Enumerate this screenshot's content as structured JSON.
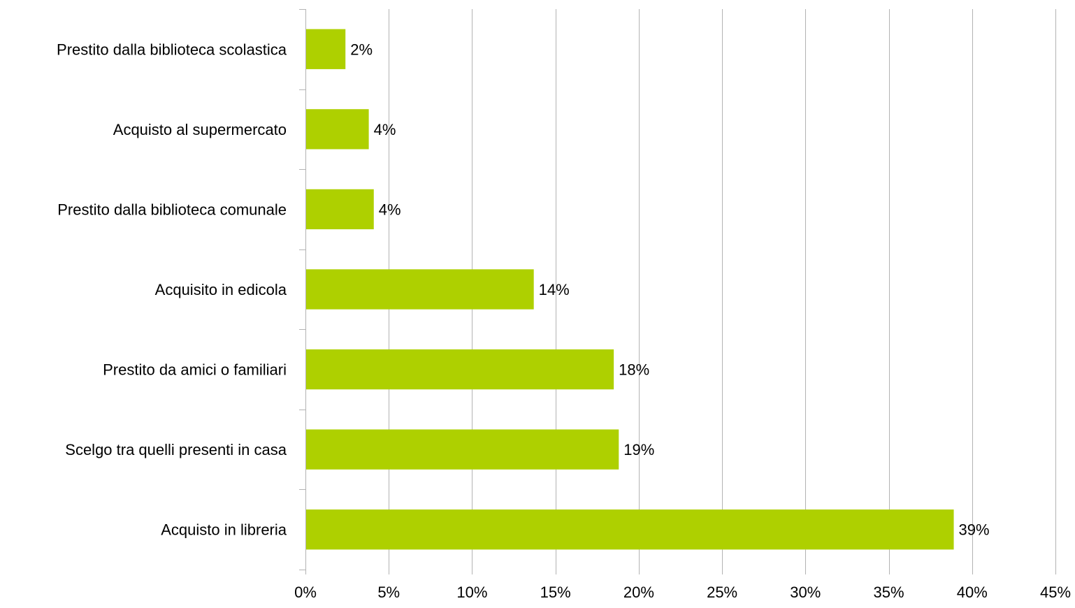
{
  "chart_data": {
    "type": "bar",
    "orientation": "horizontal",
    "title": "",
    "xlabel": "",
    "ylabel": "",
    "categories": [
      "Prestito dalla biblioteca scolastica",
      "Acquisto al supermercato",
      "Prestito dalla biblioteca comunale",
      "Acquisito in edicola",
      "Prestito da amici o familiari",
      "Scelgo tra quelli presenti in casa",
      "Acquisto in libreria"
    ],
    "values": [
      2.4,
      3.8,
      4.1,
      13.7,
      18.5,
      18.8,
      38.9
    ],
    "data_labels": [
      "2%",
      "4%",
      "4%",
      "14%",
      "18%",
      "19%",
      "39%"
    ],
    "x_ticks": [
      0,
      5,
      10,
      15,
      20,
      25,
      30,
      35,
      40,
      45
    ],
    "x_tick_labels": [
      "0%",
      "5%",
      "10%",
      "15%",
      "20%",
      "25%",
      "30%",
      "35%",
      "40%",
      "45%"
    ],
    "xlim": [
      0,
      45
    ],
    "grid": "vertical",
    "legend": "none",
    "bar_color": "#aed000",
    "grid_color": "#b3b3b3"
  }
}
